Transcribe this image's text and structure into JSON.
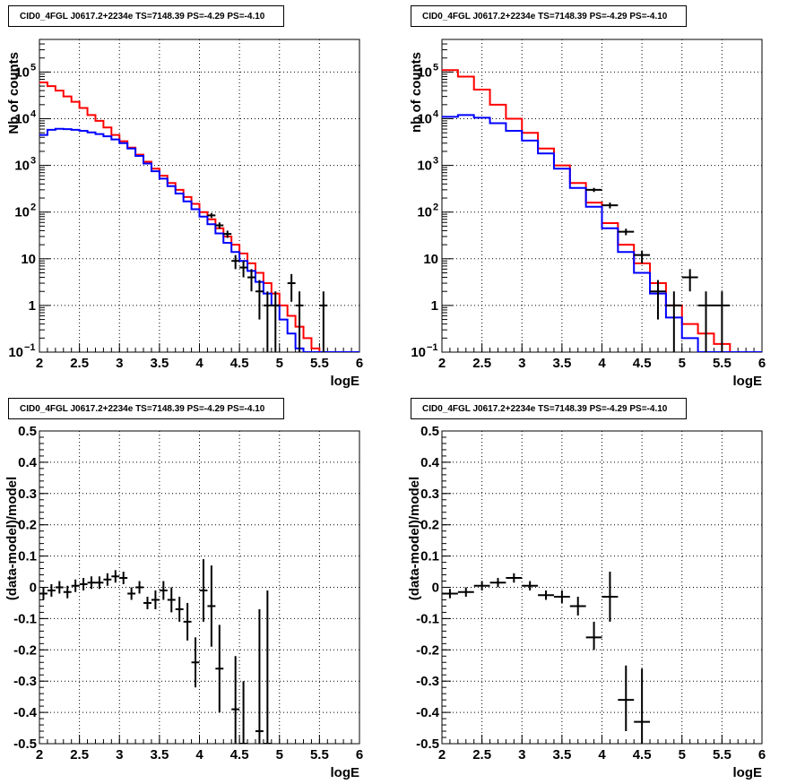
{
  "canvas": {
    "title": "CID0_4FGL J0617.2+2234e TS=7148.39 PS=-4.29 PS=-4.10"
  },
  "colors": {
    "model": "#ff0000",
    "background_model": "#0000ff",
    "data": "#000000",
    "grid": "#000000"
  },
  "chart_data": [
    {
      "type": "line",
      "panel": "top-left",
      "title": "CID0_4FGL J0617.2+2234e TS=7148.39 PS=-4.29 PS=-4.10",
      "xlabel": "logE",
      "ylabel": "Nb of counts",
      "xlim": [
        2,
        6
      ],
      "ylim": [
        0.1,
        500000
      ],
      "ylog": true,
      "grid": true,
      "xticks": [
        "2",
        "2.5",
        "3",
        "3.5",
        "4",
        "4.5",
        "5",
        "5.5",
        "6"
      ],
      "yticks": [
        {
          "v": 0.1,
          "label": "10",
          "sup": "−1"
        },
        {
          "v": 1,
          "label": "1",
          "sup": ""
        },
        {
          "v": 10,
          "label": "10",
          "sup": ""
        },
        {
          "v": 100,
          "label": "10",
          "sup": "2"
        },
        {
          "v": 1000,
          "label": "10",
          "sup": "3"
        },
        {
          "v": 10000,
          "label": "10",
          "sup": "4"
        },
        {
          "v": 100000,
          "label": "10",
          "sup": "5"
        }
      ],
      "bin_edges": [
        2.0,
        2.1,
        2.2,
        2.3,
        2.4,
        2.5,
        2.6,
        2.7,
        2.8,
        2.9,
        3.0,
        3.1,
        3.2,
        3.3,
        3.4,
        3.5,
        3.6,
        3.7,
        3.8,
        3.9,
        4.0,
        4.1,
        4.2,
        4.3,
        4.4,
        4.5,
        4.6,
        4.7,
        4.8,
        4.9,
        5.0,
        5.1,
        5.2,
        5.3,
        5.4,
        5.5,
        5.6,
        5.7,
        5.8,
        5.9,
        6.0
      ],
      "series": [
        {
          "role": "model",
          "style": "step",
          "color": "#ff0000",
          "values": [
            60000,
            50000,
            40000,
            30000,
            23000,
            17000,
            12000,
            9000,
            6500,
            4500,
            3300,
            2400,
            1700,
            1200,
            850,
            600,
            420,
            300,
            210,
            150,
            100,
            70,
            45,
            30,
            20,
            13,
            8,
            5,
            3,
            1.8,
            1,
            0.6,
            0.35,
            0.2,
            0.12,
            0.1,
            0.1,
            0.1,
            0.1,
            0.1
          ]
        },
        {
          "role": "background",
          "style": "step",
          "color": "#0000ff",
          "values": [
            4500,
            5800,
            6100,
            6000,
            5800,
            5500,
            5100,
            4700,
            4200,
            3600,
            3000,
            2300,
            1600,
            1100,
            750,
            520,
            360,
            250,
            170,
            115,
            80,
            55,
            35,
            22,
            14,
            9,
            5.5,
            3.2,
            1.8,
            1,
            0.5,
            0.25,
            0.12,
            0.1,
            0.1,
            0.1,
            0.1,
            0.1,
            0.1,
            0.1
          ]
        },
        {
          "role": "data",
          "style": "errorbar",
          "color": "#000000",
          "points": [
            {
              "x": 4.15,
              "y": 85,
              "lo": 75,
              "hi": 95
            },
            {
              "x": 4.25,
              "y": 52,
              "lo": 44,
              "hi": 60
            },
            {
              "x": 4.35,
              "y": 34,
              "lo": 28,
              "hi": 40
            },
            {
              "x": 4.45,
              "y": 9,
              "lo": 6,
              "hi": 12
            },
            {
              "x": 4.55,
              "y": 6.5,
              "lo": 4,
              "hi": 9
            },
            {
              "x": 4.65,
              "y": 4,
              "lo": 2,
              "hi": 6
            },
            {
              "x": 4.75,
              "y": 2,
              "lo": 0.5,
              "hi": 3.5
            },
            {
              "x": 4.85,
              "y": 1,
              "lo": 0.1,
              "hi": 2
            },
            {
              "x": 4.95,
              "y": 1,
              "lo": 0.1,
              "hi": 2
            },
            {
              "x": 5.15,
              "y": 3,
              "lo": 1.2,
              "hi": 4.7
            },
            {
              "x": 5.25,
              "y": 1,
              "lo": 0.1,
              "hi": 2
            },
            {
              "x": 5.55,
              "y": 1,
              "lo": 0.1,
              "hi": 2
            }
          ]
        }
      ]
    },
    {
      "type": "line",
      "panel": "top-right",
      "title": "CID0_4FGL J0617.2+2234e TS=7148.39 PS=-4.29 PS=-4.10",
      "xlabel": "logE",
      "ylabel": "nb of counts",
      "xlim": [
        2,
        6
      ],
      "ylim": [
        0.1,
        500000
      ],
      "ylog": true,
      "grid": true,
      "xticks": [
        "2",
        "2.5",
        "3",
        "3.5",
        "4",
        "4.5",
        "5",
        "5.5",
        "6"
      ],
      "yticks": [
        {
          "v": 0.1,
          "label": "10",
          "sup": "−1"
        },
        {
          "v": 1,
          "label": "1",
          "sup": ""
        },
        {
          "v": 10,
          "label": "10",
          "sup": ""
        },
        {
          "v": 100,
          "label": "10",
          "sup": "2"
        },
        {
          "v": 1000,
          "label": "10",
          "sup": "3"
        },
        {
          "v": 10000,
          "label": "10",
          "sup": "4"
        },
        {
          "v": 100000,
          "label": "10",
          "sup": "5"
        }
      ],
      "bin_edges": [
        2.0,
        2.2,
        2.4,
        2.6,
        2.8,
        3.0,
        3.2,
        3.4,
        3.6,
        3.8,
        4.0,
        4.2,
        4.4,
        4.6,
        4.8,
        5.0,
        5.2,
        5.4,
        5.6,
        5.8,
        6.0
      ],
      "series": [
        {
          "role": "model",
          "style": "step",
          "color": "#ff0000",
          "values": [
            110000,
            80000,
            42000,
            20000,
            10000,
            5000,
            2300,
            1000,
            420,
            160,
            58,
            20,
            8,
            3,
            1,
            0.4,
            0.25,
            0.15,
            0.1,
            0.1
          ]
        },
        {
          "role": "background",
          "style": "step",
          "color": "#0000ff",
          "values": [
            11000,
            12000,
            10500,
            8000,
            5500,
            3400,
            1800,
            850,
            330,
            130,
            45,
            14,
            5,
            1.8,
            0.55,
            0.2,
            0.1,
            0.1,
            0.1,
            0.1
          ]
        },
        {
          "role": "data",
          "style": "errorbar",
          "color": "#000000",
          "points": [
            {
              "x": 3.9,
              "y": 300,
              "lo": 270,
              "hi": 330
            },
            {
              "x": 4.1,
              "y": 140,
              "lo": 120,
              "hi": 160
            },
            {
              "x": 4.3,
              "y": 38,
              "lo": 32,
              "hi": 44
            },
            {
              "x": 4.5,
              "y": 12,
              "lo": 8,
              "hi": 15
            },
            {
              "x": 4.7,
              "y": 2,
              "lo": 0.5,
              "hi": 3.5
            },
            {
              "x": 4.9,
              "y": 1,
              "lo": 0.1,
              "hi": 2
            },
            {
              "x": 5.1,
              "y": 4,
              "lo": 2,
              "hi": 6
            },
            {
              "x": 5.3,
              "y": 1,
              "lo": 0.1,
              "hi": 2
            },
            {
              "x": 5.5,
              "y": 1,
              "lo": 0.1,
              "hi": 2
            }
          ]
        }
      ]
    },
    {
      "type": "scatter",
      "panel": "bottom-left",
      "title": "CID0_4FGL J0617.2+2234e TS=7148.39 PS=-4.29 PS=-4.10",
      "xlabel": "logE",
      "ylabel": "(data-model)/model",
      "xlim": [
        2,
        6
      ],
      "ylim": [
        -0.5,
        0.5
      ],
      "grid": true,
      "xticks": [
        "2",
        "2.5",
        "3",
        "3.5",
        "4",
        "4.5",
        "5",
        "5.5",
        "6"
      ],
      "yticks": [
        "-0.5",
        "-0.4",
        "-0.3",
        "-0.2",
        "-0.1",
        "0",
        "0.1",
        "0.2",
        "0.3",
        "0.4",
        "0.5"
      ],
      "halfwidth": 0.05,
      "series": [
        {
          "role": "data",
          "style": "errorbar",
          "color": "#000000",
          "points": [
            {
              "x": 2.05,
              "y": -0.02,
              "lo": -0.04,
              "hi": 0.0
            },
            {
              "x": 2.15,
              "y": -0.01,
              "lo": -0.03,
              "hi": 0.01
            },
            {
              "x": 2.25,
              "y": 0.0,
              "lo": -0.02,
              "hi": 0.02
            },
            {
              "x": 2.35,
              "y": -0.015,
              "lo": -0.035,
              "hi": 0.005
            },
            {
              "x": 2.45,
              "y": 0.005,
              "lo": -0.015,
              "hi": 0.025
            },
            {
              "x": 2.55,
              "y": 0.01,
              "lo": -0.01,
              "hi": 0.03
            },
            {
              "x": 2.65,
              "y": 0.015,
              "lo": -0.005,
              "hi": 0.035
            },
            {
              "x": 2.75,
              "y": 0.015,
              "lo": -0.005,
              "hi": 0.035
            },
            {
              "x": 2.85,
              "y": 0.025,
              "lo": 0.005,
              "hi": 0.045
            },
            {
              "x": 2.95,
              "y": 0.035,
              "lo": 0.015,
              "hi": 0.055
            },
            {
              "x": 3.05,
              "y": 0.03,
              "lo": 0.01,
              "hi": 0.05
            },
            {
              "x": 3.15,
              "y": -0.02,
              "lo": -0.04,
              "hi": 0.0
            },
            {
              "x": 3.25,
              "y": 0.0,
              "lo": -0.02,
              "hi": 0.02
            },
            {
              "x": 3.35,
              "y": -0.05,
              "lo": -0.07,
              "hi": -0.03
            },
            {
              "x": 3.45,
              "y": -0.04,
              "lo": -0.07,
              "hi": -0.01
            },
            {
              "x": 3.55,
              "y": -0.01,
              "lo": -0.04,
              "hi": 0.02
            },
            {
              "x": 3.65,
              "y": -0.04,
              "lo": -0.08,
              "hi": 0.0
            },
            {
              "x": 3.75,
              "y": -0.07,
              "lo": -0.11,
              "hi": -0.03
            },
            {
              "x": 3.85,
              "y": -0.11,
              "lo": -0.17,
              "hi": -0.05
            },
            {
              "x": 3.95,
              "y": -0.24,
              "lo": -0.32,
              "hi": -0.16
            },
            {
              "x": 4.05,
              "y": -0.01,
              "lo": -0.11,
              "hi": 0.09
            },
            {
              "x": 4.15,
              "y": -0.06,
              "lo": -0.19,
              "hi": 0.07
            },
            {
              "x": 4.25,
              "y": -0.26,
              "lo": -0.4,
              "hi": -0.12
            },
            {
              "x": 4.45,
              "y": -0.39,
              "lo": -0.55,
              "hi": -0.22
            },
            {
              "x": 4.55,
              "y": -0.5,
              "lo": -0.55,
              "hi": -0.3
            },
            {
              "x": 4.75,
              "y": -0.46,
              "lo": -0.55,
              "hi": -0.07
            },
            {
              "x": 4.85,
              "y": -0.5,
              "lo": -0.55,
              "hi": -0.01
            }
          ]
        }
      ]
    },
    {
      "type": "scatter",
      "panel": "bottom-right",
      "title": "CID0_4FGL J0617.2+2234e TS=7148.39 PS=-4.29 PS=-4.10",
      "xlabel": "logE",
      "ylabel": "(data-model)/model",
      "xlim": [
        2,
        6
      ],
      "ylim": [
        -0.5,
        0.5
      ],
      "grid": true,
      "xticks": [
        "2",
        "2.5",
        "3",
        "3.5",
        "4",
        "4.5",
        "5",
        "5.5",
        "6"
      ],
      "yticks": [
        "-0.5",
        "-0.4",
        "-0.3",
        "-0.2",
        "-0.1",
        "0",
        "0.1",
        "0.2",
        "0.3",
        "0.4",
        "0.5"
      ],
      "halfwidth": 0.1,
      "series": [
        {
          "role": "data",
          "style": "errorbar",
          "color": "#000000",
          "points": [
            {
              "x": 2.1,
              "y": -0.02,
              "lo": -0.035,
              "hi": -0.005
            },
            {
              "x": 2.3,
              "y": -0.015,
              "lo": -0.03,
              "hi": 0.0
            },
            {
              "x": 2.5,
              "y": 0.005,
              "lo": -0.01,
              "hi": 0.02
            },
            {
              "x": 2.7,
              "y": 0.015,
              "lo": 0.0,
              "hi": 0.03
            },
            {
              "x": 2.9,
              "y": 0.03,
              "lo": 0.015,
              "hi": 0.045
            },
            {
              "x": 3.1,
              "y": 0.005,
              "lo": -0.01,
              "hi": 0.02
            },
            {
              "x": 3.3,
              "y": -0.025,
              "lo": -0.04,
              "hi": -0.01
            },
            {
              "x": 3.5,
              "y": -0.03,
              "lo": -0.05,
              "hi": -0.01
            },
            {
              "x": 3.7,
              "y": -0.06,
              "lo": -0.09,
              "hi": -0.03
            },
            {
              "x": 3.9,
              "y": -0.16,
              "lo": -0.2,
              "hi": -0.11
            },
            {
              "x": 4.1,
              "y": -0.03,
              "lo": -0.11,
              "hi": 0.05
            },
            {
              "x": 4.3,
              "y": -0.36,
              "lo": -0.46,
              "hi": -0.25
            },
            {
              "x": 4.5,
              "y": -0.43,
              "lo": -0.55,
              "hi": -0.26
            }
          ]
        }
      ]
    }
  ]
}
